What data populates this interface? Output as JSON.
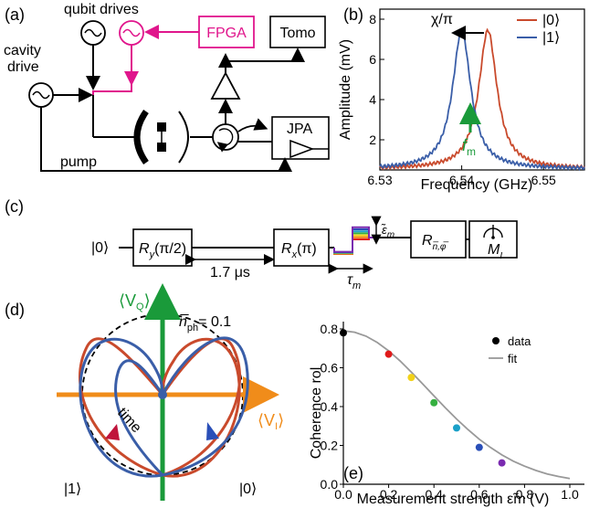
{
  "panel_labels": {
    "a": "(a)",
    "b": "(b)",
    "c": "(c)",
    "d": "(d)",
    "e": "(e)"
  },
  "panel_a": {
    "qubit_drives": "qubit drives",
    "cavity_drive_line1": "cavity",
    "cavity_drive_line2": "drive",
    "fpga": "FPGA",
    "tomo": "Tomo",
    "jpa": "JPA",
    "pump": "pump",
    "colors": {
      "fpga": "#e0168c",
      "black": "#000000"
    }
  },
  "panel_b": {
    "shift_label": "χ/π",
    "freq_label_f": "f",
    "freq_label_sub": "m",
    "legend": [
      "|0⟩",
      "|1⟩"
    ],
    "colors": {
      "state0": "#c94a2c",
      "state1": "#3a5ea8",
      "arrow": "#1a9a3a"
    }
  },
  "panel_c": {
    "init": "|0⟩",
    "ry": "R",
    "ry_sub": "y",
    "ry_arg": "(π/2)",
    "rx": "R",
    "rx_sub": "x",
    "rx_arg": "(π)",
    "wait": "1.7 μs",
    "eps": "ε̃",
    "eps_sub": "m",
    "tau": "τ",
    "tau_sub": "m",
    "rn": "R",
    "rn_sub": "n̅,φ̅",
    "meas": "M",
    "meas_sub": "I",
    "pulse_colors": [
      "#e01a1a",
      "#f07a10",
      "#f2d21a",
      "#35b040",
      "#1aa0c8",
      "#2a4fb8",
      "#7a2ab0"
    ]
  },
  "panel_d": {
    "vq": "⟨V",
    "vq_sub": "Q",
    "vi": "⟨V",
    "vi_sub": "I",
    "nph_label": "n̅",
    "nph_sub": "ph",
    "nph_value": "= 0.1",
    "time": "time",
    "state1": "|1⟩",
    "state0": "|0⟩",
    "colors": {
      "vq_axis": "#1a9a3a",
      "vi_axis": "#f08c1a",
      "state0": "#c94a2c",
      "state1": "#3a5ea8"
    }
  },
  "chart_data": {
    "type": "scatter",
    "xlabel": "Measurement strength ε̃m (V)",
    "ylabel": "Coherence rol",
    "xlim": [
      0,
      1.0
    ],
    "ylim": [
      0,
      0.8
    ],
    "xticks": [
      "0.0",
      "0.2",
      "0.4",
      "0.6",
      "0.8",
      "1.0"
    ],
    "yticks": [
      "0.0",
      "0.2",
      "0.4",
      "0.6",
      "0.8"
    ],
    "legend_position": "top-right",
    "series": [
      {
        "name": "data",
        "x": [
          0.0,
          0.2,
          0.3,
          0.4,
          0.5,
          0.6,
          0.7
        ],
        "y": [
          0.78,
          0.67,
          0.55,
          0.42,
          0.29,
          0.19,
          0.11
        ],
        "colors": [
          "#000000",
          "#e01a1a",
          "#f2d21a",
          "#35b040",
          "#1aa0c8",
          "#2a4fb8",
          "#7a2ab0"
        ]
      },
      {
        "name": "fit",
        "x": [
          0.0,
          0.05,
          0.1,
          0.15,
          0.2,
          0.25,
          0.3,
          0.35,
          0.4,
          0.45,
          0.5,
          0.55,
          0.6,
          0.65,
          0.7,
          0.75,
          0.8,
          0.85,
          0.9,
          0.95,
          1.0
        ],
        "y": [
          0.79,
          0.783,
          0.763,
          0.73,
          0.687,
          0.636,
          0.578,
          0.517,
          0.455,
          0.394,
          0.336,
          0.282,
          0.232,
          0.189,
          0.151,
          0.119,
          0.093,
          0.071,
          0.053,
          0.04,
          0.029
        ],
        "color": "#999999"
      }
    ]
  },
  "spectrum": {
    "xlabel": "Frequency (GHz)",
    "ylabel": "Amplitude (mV)",
    "xlim": [
      6.53,
      6.555
    ],
    "ylim": [
      0.5,
      8.5
    ],
    "xticks": [
      "6.53",
      "6.54",
      "6.55"
    ],
    "yticks": [
      "2",
      "4",
      "6",
      "8"
    ]
  }
}
